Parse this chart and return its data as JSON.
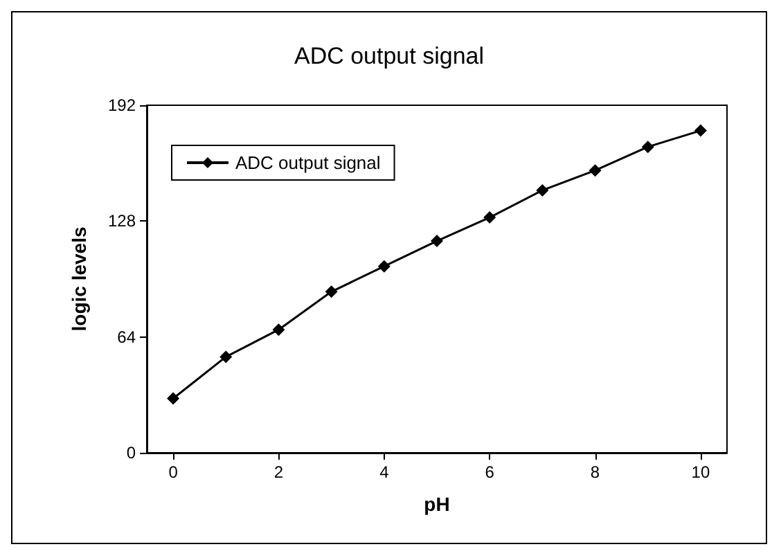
{
  "chart_data": {
    "type": "line",
    "title": "ADC output signal",
    "xlabel": "pH",
    "ylabel": "logic levels",
    "x": [
      0,
      1,
      2,
      3,
      4,
      5,
      6,
      7,
      8,
      9,
      10
    ],
    "series": [
      {
        "name": "ADC output signal",
        "color": "#000000",
        "values": [
          30,
          53,
          68,
          89,
          103,
          117,
          130,
          145,
          156,
          169,
          178
        ]
      }
    ],
    "xlim": [
      -0.5,
      10.5
    ],
    "xticks": [
      0,
      2,
      4,
      6,
      8,
      10
    ],
    "ylim": [
      0,
      192
    ],
    "yticks": [
      0,
      64,
      128,
      192
    ],
    "grid": false,
    "legend": "top left",
    "marker": "diamond",
    "line_style": "solid"
  }
}
